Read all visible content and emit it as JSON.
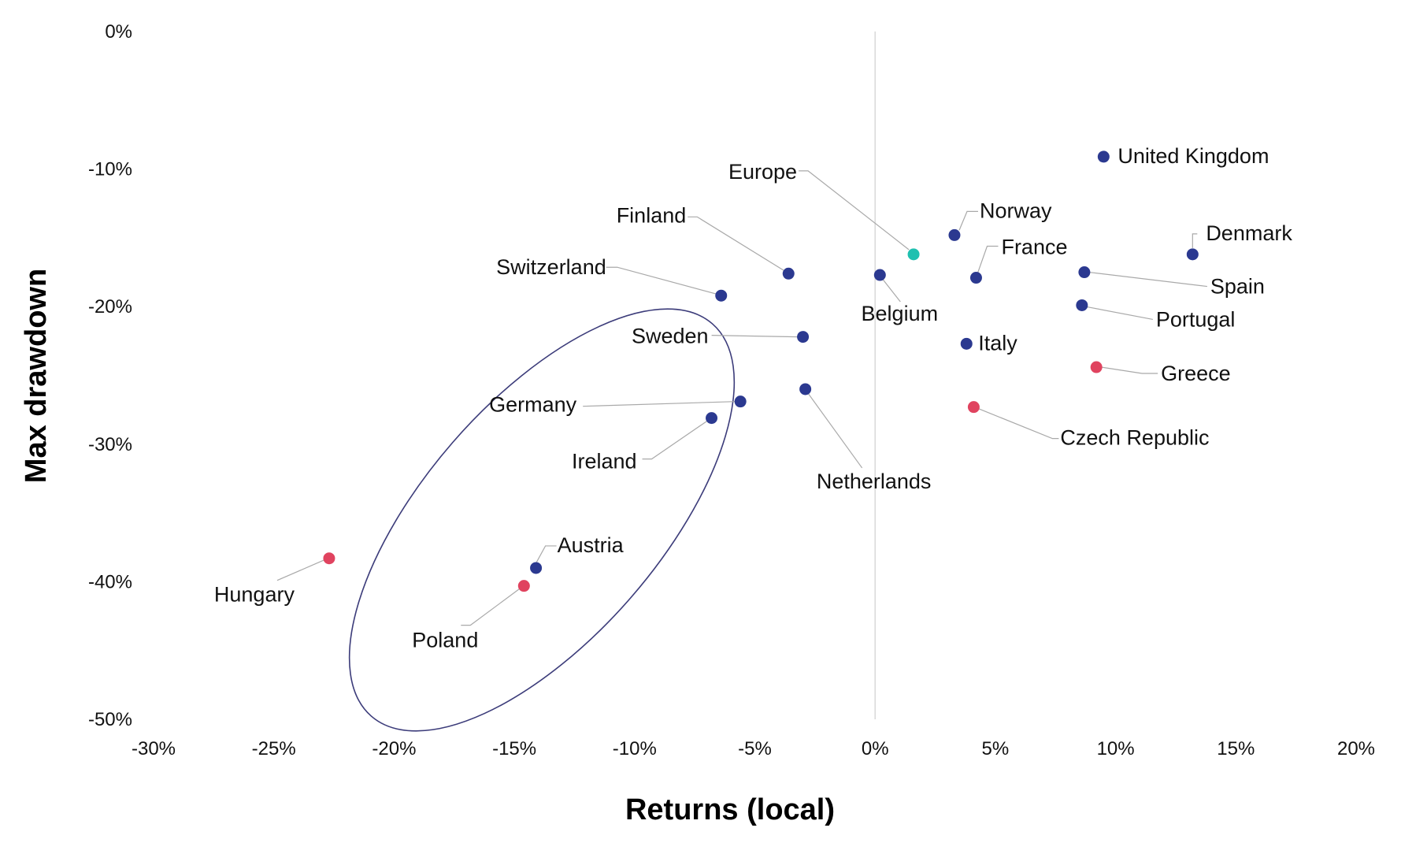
{
  "chart_data": {
    "type": "scatter",
    "xlabel": "Returns (local)",
    "ylabel": "Max drawdown",
    "xlim": [
      -30,
      20
    ],
    "ylim": [
      -50,
      0
    ],
    "x_ticks": [
      -30,
      -25,
      -20,
      -15,
      -10,
      -5,
      0,
      5,
      10,
      15,
      20
    ],
    "x_tick_labels": [
      "-30%",
      "-25%",
      "-20%",
      "-15%",
      "-10%",
      "-5%",
      "0%",
      "5%",
      "10%",
      "15%",
      "20%"
    ],
    "y_ticks": [
      0,
      -10,
      -20,
      -30,
      -40,
      -50
    ],
    "y_tick_labels": [
      "0%",
      "-10%",
      "-20%",
      "-30%",
      "-40%",
      "-50%"
    ],
    "grid": false,
    "zero_line": true,
    "colors": {
      "country": "#2b3990",
      "highlight": "#e0435f",
      "europe": "#1fc0b0",
      "ellipse": "#3c3c7a",
      "zero_line": "#d9d9d9",
      "leader_line": "#a9a9a9"
    },
    "points": [
      {
        "label": "United Kingdom",
        "x": 9.5,
        "y": -9.1,
        "group": "country"
      },
      {
        "label": "Denmark",
        "x": 13.2,
        "y": -16.2,
        "group": "country"
      },
      {
        "label": "Norway",
        "x": 3.3,
        "y": -14.8,
        "group": "country"
      },
      {
        "label": "France",
        "x": 4.2,
        "y": -17.9,
        "group": "country"
      },
      {
        "label": "Spain",
        "x": 8.7,
        "y": -17.5,
        "group": "country"
      },
      {
        "label": "Portugal",
        "x": 8.6,
        "y": -19.9,
        "group": "country"
      },
      {
        "label": "Italy",
        "x": 3.8,
        "y": -22.7,
        "group": "country"
      },
      {
        "label": "Greece",
        "x": 9.2,
        "y": -24.4,
        "group": "highlight"
      },
      {
        "label": "Czech Republic",
        "x": 4.1,
        "y": -27.3,
        "group": "highlight"
      },
      {
        "label": "Europe",
        "x": 1.6,
        "y": -16.2,
        "group": "europe"
      },
      {
        "label": "Belgium",
        "x": 0.2,
        "y": -17.7,
        "group": "country"
      },
      {
        "label": "Finland",
        "x": -3.6,
        "y": -17.6,
        "group": "country"
      },
      {
        "label": "Switzerland",
        "x": -6.4,
        "y": -19.2,
        "group": "country"
      },
      {
        "label": "Sweden",
        "x": -3.0,
        "y": -22.2,
        "group": "country"
      },
      {
        "label": "Netherlands",
        "x": -2.9,
        "y": -26.0,
        "group": "country"
      },
      {
        "label": "Germany",
        "x": -5.6,
        "y": -26.9,
        "group": "country"
      },
      {
        "label": "Ireland",
        "x": -6.8,
        "y": -28.1,
        "group": "country"
      },
      {
        "label": "Austria",
        "x": -14.1,
        "y": -39.0,
        "group": "country"
      },
      {
        "label": "Poland",
        "x": -14.6,
        "y": -40.3,
        "group": "highlight"
      },
      {
        "label": "Hungary",
        "x": -22.7,
        "y": -38.3,
        "group": "highlight"
      }
    ]
  }
}
